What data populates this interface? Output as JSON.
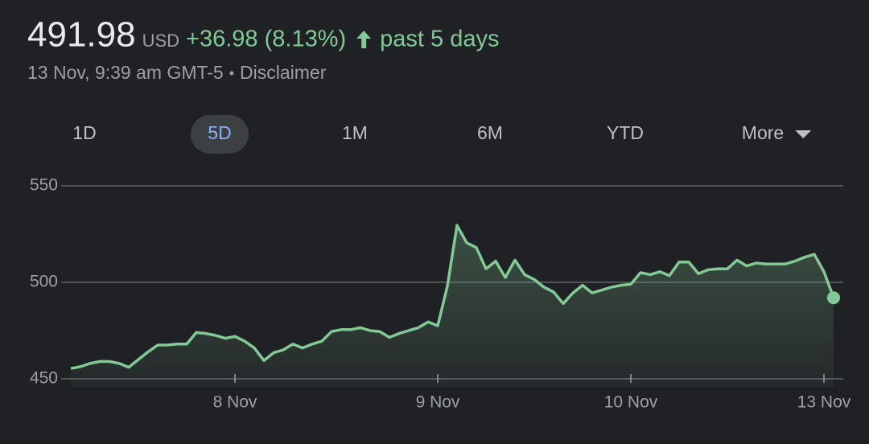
{
  "header": {
    "price": "491.98",
    "currency": "USD",
    "change": "+36.98 (8.13%)",
    "period": "past 5 days",
    "timestamp": "13 Nov, 9:39 am GMT-5",
    "separator": "•",
    "disclaimer": "Disclaimer"
  },
  "tabs": [
    "1D",
    "5D",
    "1M",
    "6M",
    "YTD",
    "More"
  ],
  "selected_tab": "5D",
  "chart_data": {
    "type": "area",
    "color": "#81c995",
    "grid": true,
    "categories": [
      null,
      null,
      null,
      null,
      null,
      null,
      null,
      null,
      null,
      null,
      null,
      null,
      null,
      null,
      null,
      null,
      null,
      "8 Nov",
      null,
      null,
      null,
      null,
      null,
      null,
      null,
      null,
      null,
      null,
      null,
      null,
      null,
      null,
      null,
      null,
      null,
      null,
      null,
      null,
      "9 Nov",
      null,
      null,
      null,
      null,
      null,
      null,
      null,
      null,
      null,
      null,
      null,
      null,
      null,
      null,
      null,
      null,
      null,
      null,
      null,
      "10 Nov",
      null,
      null,
      null,
      null,
      null,
      null,
      null,
      null,
      null,
      null,
      null,
      null,
      null,
      null,
      null,
      null,
      null,
      null,
      null,
      "13 Nov",
      null
    ],
    "values": [
      455.4,
      456.3,
      458,
      459,
      459,
      458,
      456,
      460,
      464,
      467.5,
      467.5,
      468,
      468,
      474,
      473.5,
      472.5,
      471,
      472,
      469.5,
      466,
      459.5,
      463.5,
      465,
      468,
      466,
      468,
      469.5,
      474.5,
      475.5,
      475.5,
      476.5,
      475,
      474.5,
      471.5,
      473.5,
      475,
      476.5,
      479.5,
      477.5,
      498,
      529.5,
      520.5,
      518,
      507,
      511,
      502.5,
      511.5,
      504,
      501.5,
      497.5,
      495,
      489,
      494.5,
      498.5,
      494.5,
      496,
      497.5,
      498.5,
      499,
      505,
      504,
      505.5,
      503.5,
      510.5,
      510.5,
      504.5,
      506.5,
      507,
      507,
      511.5,
      508.5,
      510,
      509.5,
      509.5,
      509.5,
      511,
      513,
      514.5,
      505.5,
      492
    ],
    "ylim": [
      450,
      550
    ],
    "yticks": [
      450,
      500,
      550
    ]
  }
}
